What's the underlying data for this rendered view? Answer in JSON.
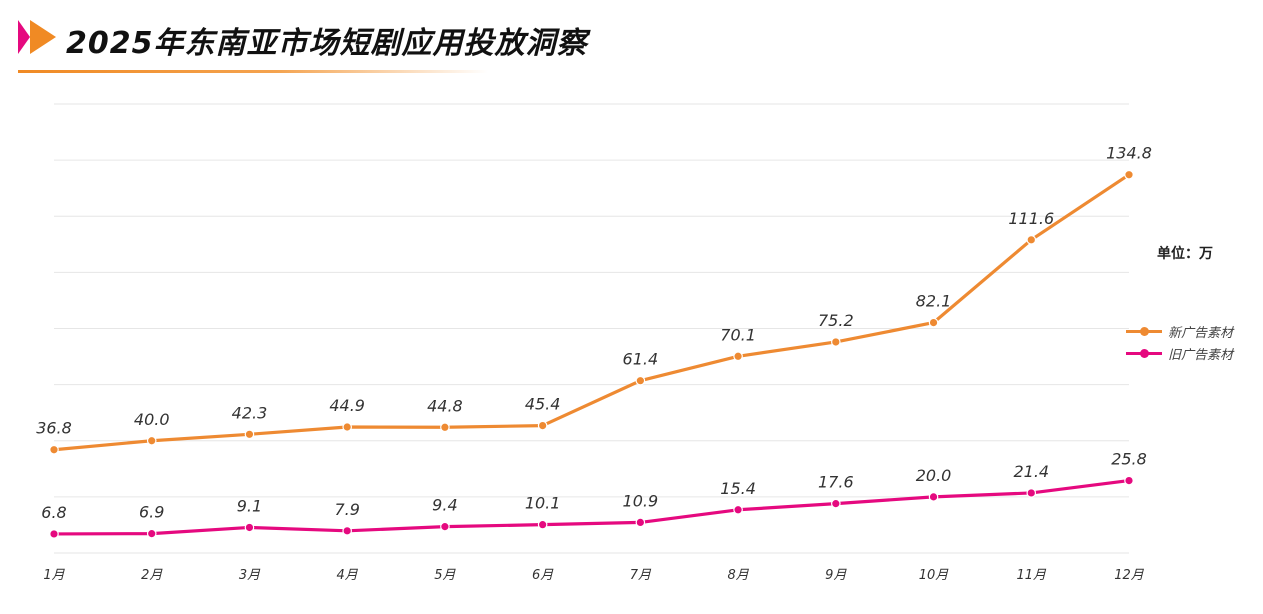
{
  "title": "2025年东南亚市场短剧应用投放洞察",
  "unit_label": "单位：万",
  "colors": {
    "accent_orange": "#ee8a32",
    "accent_magenta": "#e5097f",
    "gridline": "#e6e6e6"
  },
  "chart_data": {
    "type": "line",
    "categories": [
      "1月",
      "2月",
      "3月",
      "4月",
      "5月",
      "6月",
      "7月",
      "8月",
      "9月",
      "10月",
      "11月",
      "12月"
    ],
    "series": [
      {
        "name": "新广告素材",
        "color": "#ee8a32",
        "values": [
          36.8,
          40.0,
          42.3,
          44.9,
          44.8,
          45.4,
          61.4,
          70.1,
          75.2,
          82.1,
          111.6,
          134.8
        ],
        "labels": [
          "36.8",
          "40.0",
          "42.3",
          "44.9",
          "44.8",
          "45.4",
          "61.4",
          "70.1",
          "75.2",
          "82.1",
          "111.6",
          "134.8"
        ]
      },
      {
        "name": "旧广告素材",
        "color": "#e5097f",
        "values": [
          6.8,
          6.9,
          9.1,
          7.9,
          9.4,
          10.1,
          10.9,
          15.4,
          17.6,
          20.0,
          21.4,
          25.8
        ],
        "labels": [
          "6.8",
          "6.9",
          "9.1",
          "7.9",
          "9.4",
          "10.1",
          "10.9",
          "15.4",
          "17.6",
          "20.0",
          "21.4",
          "25.8"
        ]
      }
    ],
    "ylim": [
      0,
      160
    ],
    "grid": true,
    "legend_position": "right"
  }
}
